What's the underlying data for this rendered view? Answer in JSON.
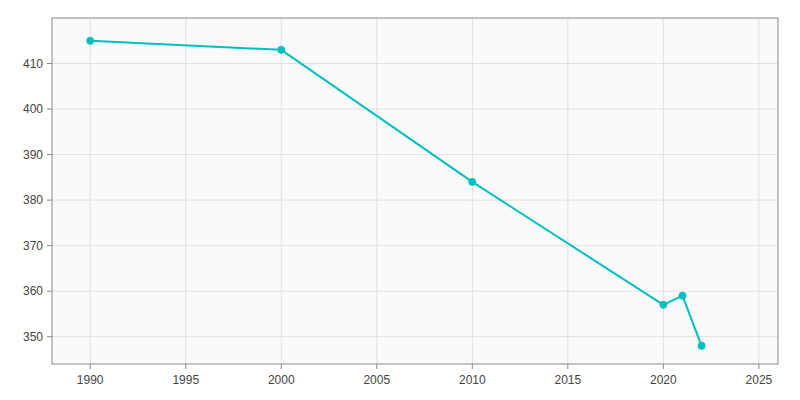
{
  "chart_data": {
    "type": "line",
    "x": [
      1990,
      2000,
      2010,
      2020,
      2021,
      2022
    ],
    "values": [
      415,
      413,
      384,
      357,
      359,
      348
    ],
    "color": "#00BFBF",
    "marker": "circle",
    "xlim": [
      1988,
      2026
    ],
    "ylim": [
      344,
      420
    ],
    "xticks": [
      1990,
      1995,
      2000,
      2005,
      2010,
      2015,
      2020,
      2025
    ],
    "yticks": [
      350,
      360,
      370,
      380,
      390,
      400,
      410
    ],
    "grid": true
  }
}
